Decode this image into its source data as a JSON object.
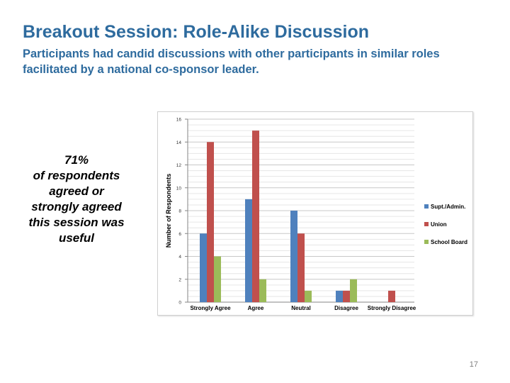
{
  "slide": {
    "title": "Breakout Session: Role-Alike Discussion",
    "subtitle": "Participants had candid discussions with other participants in similar roles facilitated by a national co-sponsor leader.",
    "callout_lines": [
      "71%",
      "of respondents",
      "agreed or",
      "strongly agreed",
      "this session was",
      "useful"
    ],
    "page_number": "17"
  },
  "chart_data": {
    "type": "bar",
    "categories": [
      "Strongly Agree",
      "Agree",
      "Neutral",
      "Disagree",
      "Strongly Disagree"
    ],
    "series": [
      {
        "name": "Supt./Admin.",
        "values": [
          6,
          9,
          8,
          1,
          0
        ],
        "color": "#4f81bd"
      },
      {
        "name": "Union",
        "values": [
          14,
          15,
          6,
          1,
          1
        ],
        "color": "#c0504d"
      },
      {
        "name": "School Board",
        "values": [
          4,
          2,
          1,
          2,
          0
        ],
        "color": "#9bbb59"
      }
    ],
    "ylabel": "Number of Respondents",
    "xlabel": "",
    "ylim": [
      0,
      16
    ],
    "yticks": [
      0,
      2,
      4,
      6,
      8,
      10,
      12,
      14,
      16
    ],
    "grid": true,
    "legend": "right"
  }
}
